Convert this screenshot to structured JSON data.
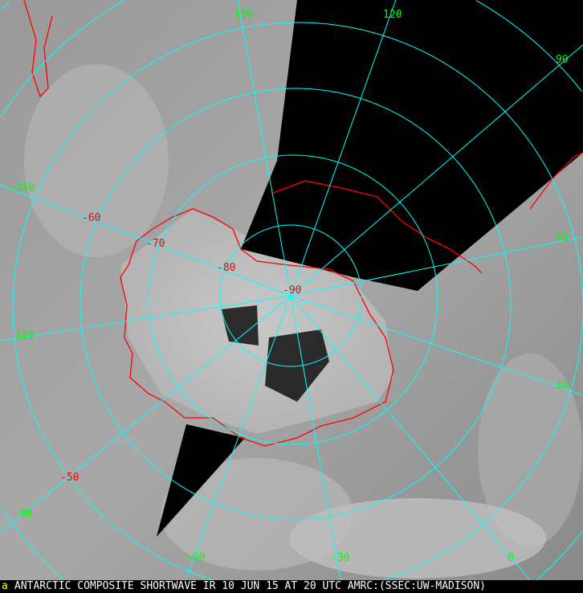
{
  "caption": "ANTARCTIC COMPOSITE SHORTWAVE IR 10 JUN 15 AT 20 UTC AMRC:(SSEC:UW-MADISON)",
  "colors": {
    "grid": "#00ffff",
    "coastline": "#ff0000",
    "longitude_labels": "#00ff00",
    "latitude_labels": "#ff0000",
    "no_data": "#000000"
  },
  "longitude_labels": [
    "150",
    "120",
    "90",
    "60",
    "30",
    "0",
    "-30",
    "-60",
    "-90",
    "-120",
    "-150"
  ],
  "latitude_labels": [
    "-50",
    "-60",
    "-70",
    "-80",
    "-90"
  ]
}
